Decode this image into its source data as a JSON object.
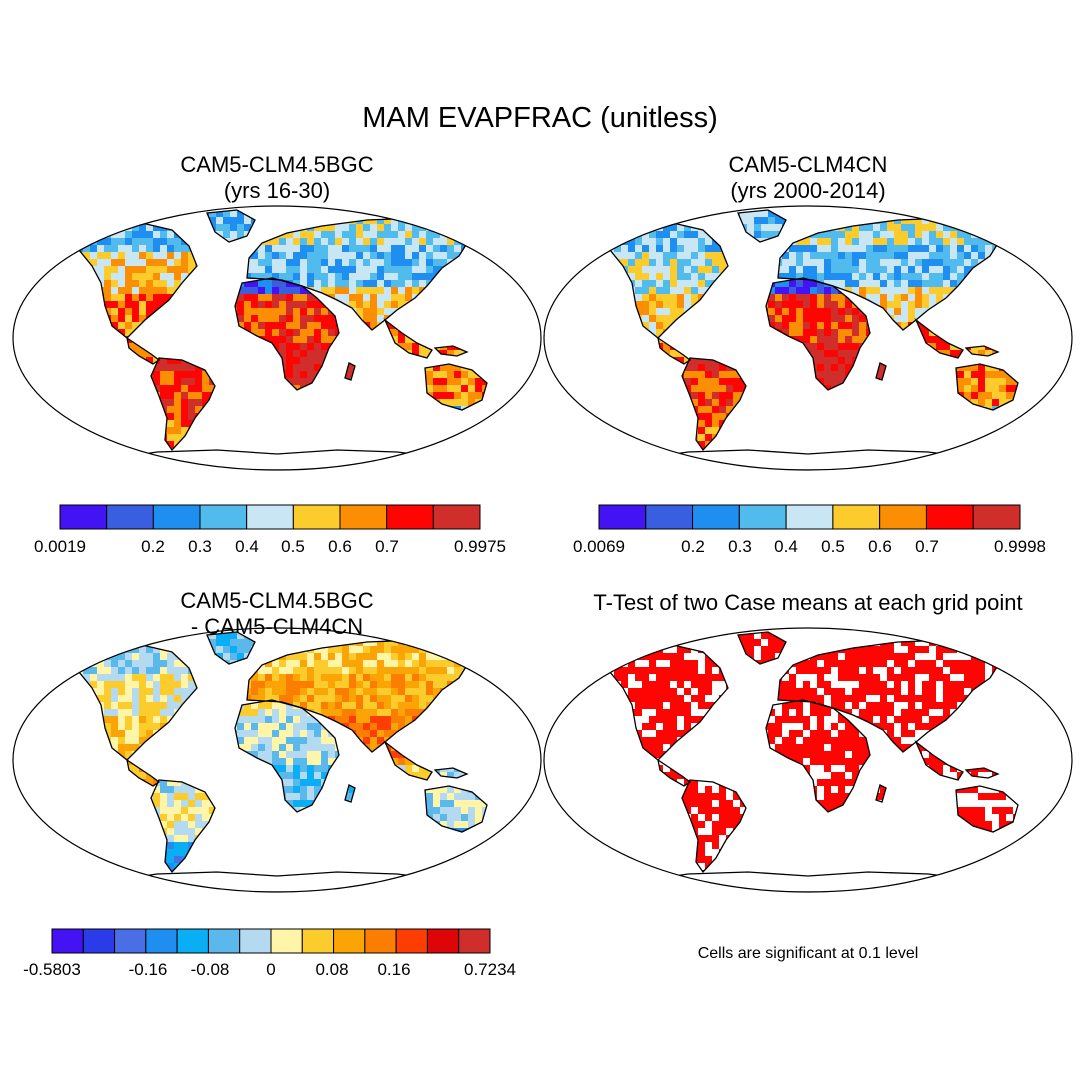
{
  "title": "MAM EVAPFRAC (unitless)",
  "panels": [
    {
      "id": "bgc",
      "title_line1": "CAM5-CLM4.5BGC",
      "title_line2": "(yrs 16-30)",
      "colors": [
        "#4313f3",
        "#3a5ee0",
        "#1e8ef0",
        "#52bbee",
        "#c8e6f4",
        "#fccc2c",
        "#fb8e03",
        "#fe0503",
        "#d02e2a"
      ],
      "min_label": "0.0019",
      "max_label": "0.9975",
      "mid_labels": [
        "0.2",
        "0.3",
        "0.4",
        "0.5",
        "0.6",
        "0.7"
      ]
    },
    {
      "id": "cn",
      "title_line1": "CAM5-CLM4CN",
      "title_line2": "(yrs 2000-2014)",
      "colors": [
        "#4313f3",
        "#3a5ee0",
        "#1e8ef0",
        "#52bbee",
        "#c8e6f4",
        "#fccc2c",
        "#fb8e03",
        "#fe0503",
        "#d02e2a"
      ],
      "min_label": "0.0069",
      "max_label": "0.9998",
      "mid_labels": [
        "0.2",
        "0.3",
        "0.4",
        "0.5",
        "0.6",
        "0.7"
      ]
    },
    {
      "id": "diff",
      "title_line1": "CAM5-CLM4.5BGC",
      "title_line2": "- CAM5-CLM4CN",
      "colors": [
        "#4313f3",
        "#2a3ce8",
        "#4a6ee6",
        "#1e8ef0",
        "#0aaef5",
        "#5ab8ec",
        "#b4daf2",
        "#fff5a8",
        "#fccc2c",
        "#fba406",
        "#fb7e03",
        "#fe3d03",
        "#de0508",
        "#d02e2a"
      ],
      "min_label": "-0.5803",
      "max_label": "0.7234",
      "mid_labels": [
        "-0.16",
        "-0.08",
        "0",
        "0.08",
        "0.16"
      ]
    },
    {
      "id": "ttest",
      "title_line1": "T-Test of two Case means at each grid point",
      "note": "Cells are significant at 0.1 level",
      "significance_color": "#fe0503"
    }
  ]
}
